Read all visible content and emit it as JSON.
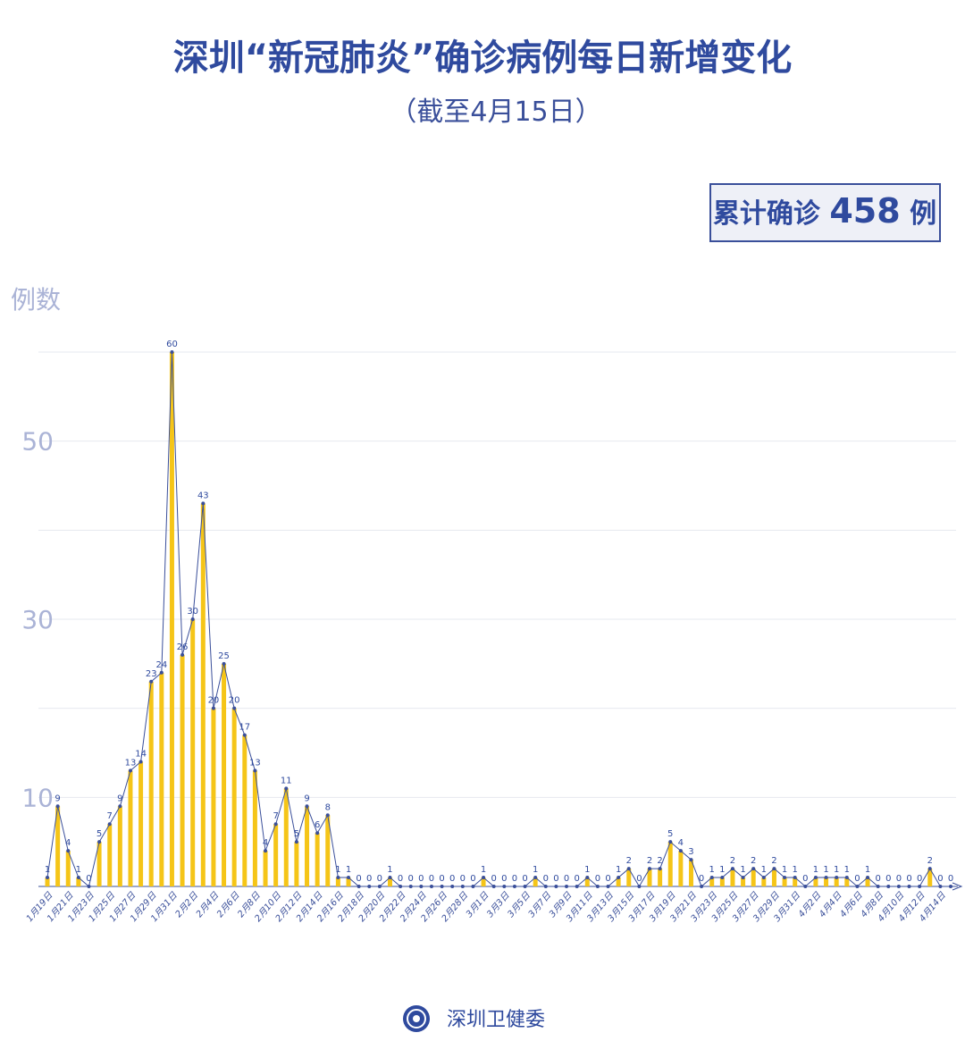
{
  "chart_data": {
    "type": "bar-line",
    "title": "深圳“新冠肺炎”确诊病例每日新增变化",
    "subtitle": "（截至4月15日）",
    "total_label": "累计确诊",
    "total_value": 458,
    "total_unit": "例",
    "y_label": "例数",
    "categories": [
      "1月19日",
      null,
      "1月21日",
      null,
      "1月23日",
      null,
      "1月25日",
      null,
      "1月27日",
      null,
      "1月29日",
      null,
      "1月31日",
      null,
      "2月2日",
      null,
      "2月4日",
      null,
      "2月6日",
      null,
      "2月8日",
      null,
      "2月10日",
      null,
      "2月12日",
      null,
      "2月14日",
      null,
      "2月16日",
      null,
      "2月18日",
      null,
      "2月20日",
      null,
      "2月22日",
      null,
      "2月24日",
      null,
      "2月26日",
      null,
      "2月28日",
      null,
      "3月1日",
      null,
      "3月3日",
      null,
      "3月5日",
      null,
      "3月7日",
      null,
      "3月9日",
      null,
      "3月11日",
      null,
      "3月13日",
      null,
      "3月15日",
      null,
      "3月17日",
      null,
      "3月19日",
      null,
      "3月21日",
      null,
      "3月23日",
      null,
      "3月25日",
      null,
      "3月27日",
      null,
      "3月29日",
      null,
      "3月31日",
      null,
      "4月2日",
      null,
      "4月4日",
      null,
      "4月6日",
      null,
      "4月8日",
      null,
      "4月10日",
      null,
      "4月12日",
      null,
      "4月14日",
      null
    ],
    "values": [
      1,
      9,
      4,
      1,
      0,
      5,
      7,
      9,
      13,
      14,
      23,
      24,
      60,
      26,
      30,
      43,
      20,
      25,
      20,
      17,
      13,
      4,
      7,
      11,
      5,
      9,
      6,
      8,
      1,
      1,
      0,
      0,
      0,
      1,
      0,
      0,
      0,
      0,
      0,
      0,
      0,
      0,
      1,
      0,
      0,
      0,
      0,
      1,
      0,
      0,
      0,
      0,
      1,
      0,
      0,
      1,
      2,
      0,
      2,
      2,
      5,
      4,
      3,
      0,
      1,
      1,
      2,
      1,
      2,
      1,
      2,
      1,
      1,
      0,
      1,
      1,
      1,
      1,
      0,
      1,
      0,
      0,
      0,
      0,
      0,
      2,
      0,
      0
    ],
    "bar_color": "#f5c518",
    "line_color": "#3a4f9a",
    "ylim": [
      0,
      60
    ],
    "yticks": [
      10,
      30,
      50
    ],
    "grid_lines": [
      10,
      20,
      30,
      40,
      50,
      60
    ],
    "grid": true
  },
  "source": "深圳卫健委"
}
